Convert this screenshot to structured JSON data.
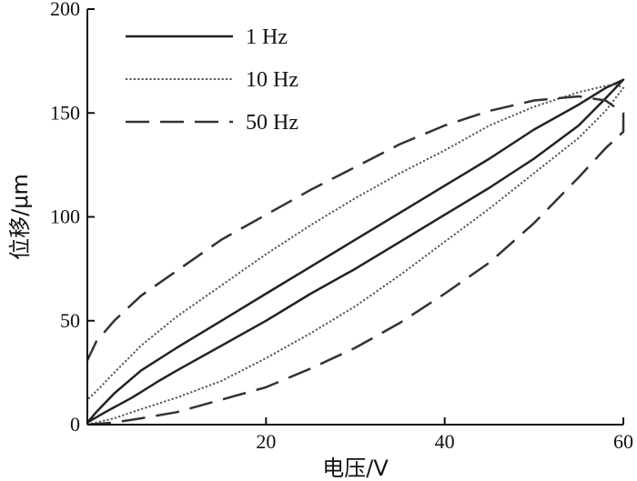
{
  "chart_data": {
    "type": "line",
    "xlabel": "电压/V",
    "ylabel": "位移/μm",
    "xlim": [
      0,
      60
    ],
    "ylim": [
      0,
      200
    ],
    "x_ticks": [
      20,
      40,
      60
    ],
    "y_ticks": [
      0,
      50,
      100,
      150,
      200
    ],
    "grid": false,
    "legend_position": "top-left",
    "series": [
      {
        "name": "1 Hz",
        "style": "solid",
        "color": "#222222",
        "points": [
          [
            0,
            1
          ],
          [
            2,
            6
          ],
          [
            5,
            13
          ],
          [
            8,
            21
          ],
          [
            10,
            26
          ],
          [
            15,
            38
          ],
          [
            20,
            50
          ],
          [
            25,
            63
          ],
          [
            30,
            75
          ],
          [
            35,
            88
          ],
          [
            40,
            101
          ],
          [
            45,
            114
          ],
          [
            50,
            128
          ],
          [
            55,
            144
          ],
          [
            58,
            157
          ],
          [
            60,
            166
          ],
          [
            58,
            162
          ],
          [
            55,
            154
          ],
          [
            50,
            142
          ],
          [
            45,
            128
          ],
          [
            40,
            115
          ],
          [
            35,
            102
          ],
          [
            30,
            89
          ],
          [
            25,
            76
          ],
          [
            20,
            63
          ],
          [
            15,
            50
          ],
          [
            10,
            37
          ],
          [
            6,
            26
          ],
          [
            3,
            15
          ],
          [
            1,
            6
          ],
          [
            0,
            1
          ]
        ]
      },
      {
        "name": "10 Hz",
        "style": "dotted",
        "color": "#555555",
        "points": [
          [
            0,
            0
          ],
          [
            3,
            3
          ],
          [
            5,
            6
          ],
          [
            10,
            13
          ],
          [
            15,
            21
          ],
          [
            20,
            32
          ],
          [
            25,
            44
          ],
          [
            30,
            57
          ],
          [
            35,
            72
          ],
          [
            40,
            88
          ],
          [
            45,
            104
          ],
          [
            50,
            121
          ],
          [
            55,
            138
          ],
          [
            58,
            151
          ],
          [
            60,
            162
          ],
          [
            59,
            164
          ],
          [
            57,
            162
          ],
          [
            55,
            160
          ],
          [
            50,
            153
          ],
          [
            45,
            144
          ],
          [
            40,
            132
          ],
          [
            35,
            121
          ],
          [
            30,
            109
          ],
          [
            25,
            96
          ],
          [
            20,
            82
          ],
          [
            15,
            67
          ],
          [
            10,
            52
          ],
          [
            6,
            38
          ],
          [
            3,
            25
          ],
          [
            1,
            16
          ],
          [
            0,
            12
          ]
        ]
      },
      {
        "name": "50 Hz",
        "style": "dashed",
        "color": "#333333",
        "points": [
          [
            0,
            0
          ],
          [
            3,
            1
          ],
          [
            6,
            3
          ],
          [
            10,
            6
          ],
          [
            15,
            12
          ],
          [
            20,
            18
          ],
          [
            25,
            27
          ],
          [
            30,
            37
          ],
          [
            35,
            49
          ],
          [
            40,
            63
          ],
          [
            45,
            78
          ],
          [
            50,
            97
          ],
          [
            55,
            119
          ],
          [
            58,
            133
          ],
          [
            60,
            141
          ],
          [
            60,
            150
          ],
          [
            58,
            156
          ],
          [
            55,
            158
          ],
          [
            50,
            156
          ],
          [
            45,
            151
          ],
          [
            40,
            144
          ],
          [
            35,
            135
          ],
          [
            30,
            124
          ],
          [
            25,
            113
          ],
          [
            20,
            101
          ],
          [
            15,
            89
          ],
          [
            10,
            74
          ],
          [
            6,
            62
          ],
          [
            3,
            50
          ],
          [
            1,
            40
          ],
          [
            0,
            31
          ]
        ]
      }
    ]
  }
}
